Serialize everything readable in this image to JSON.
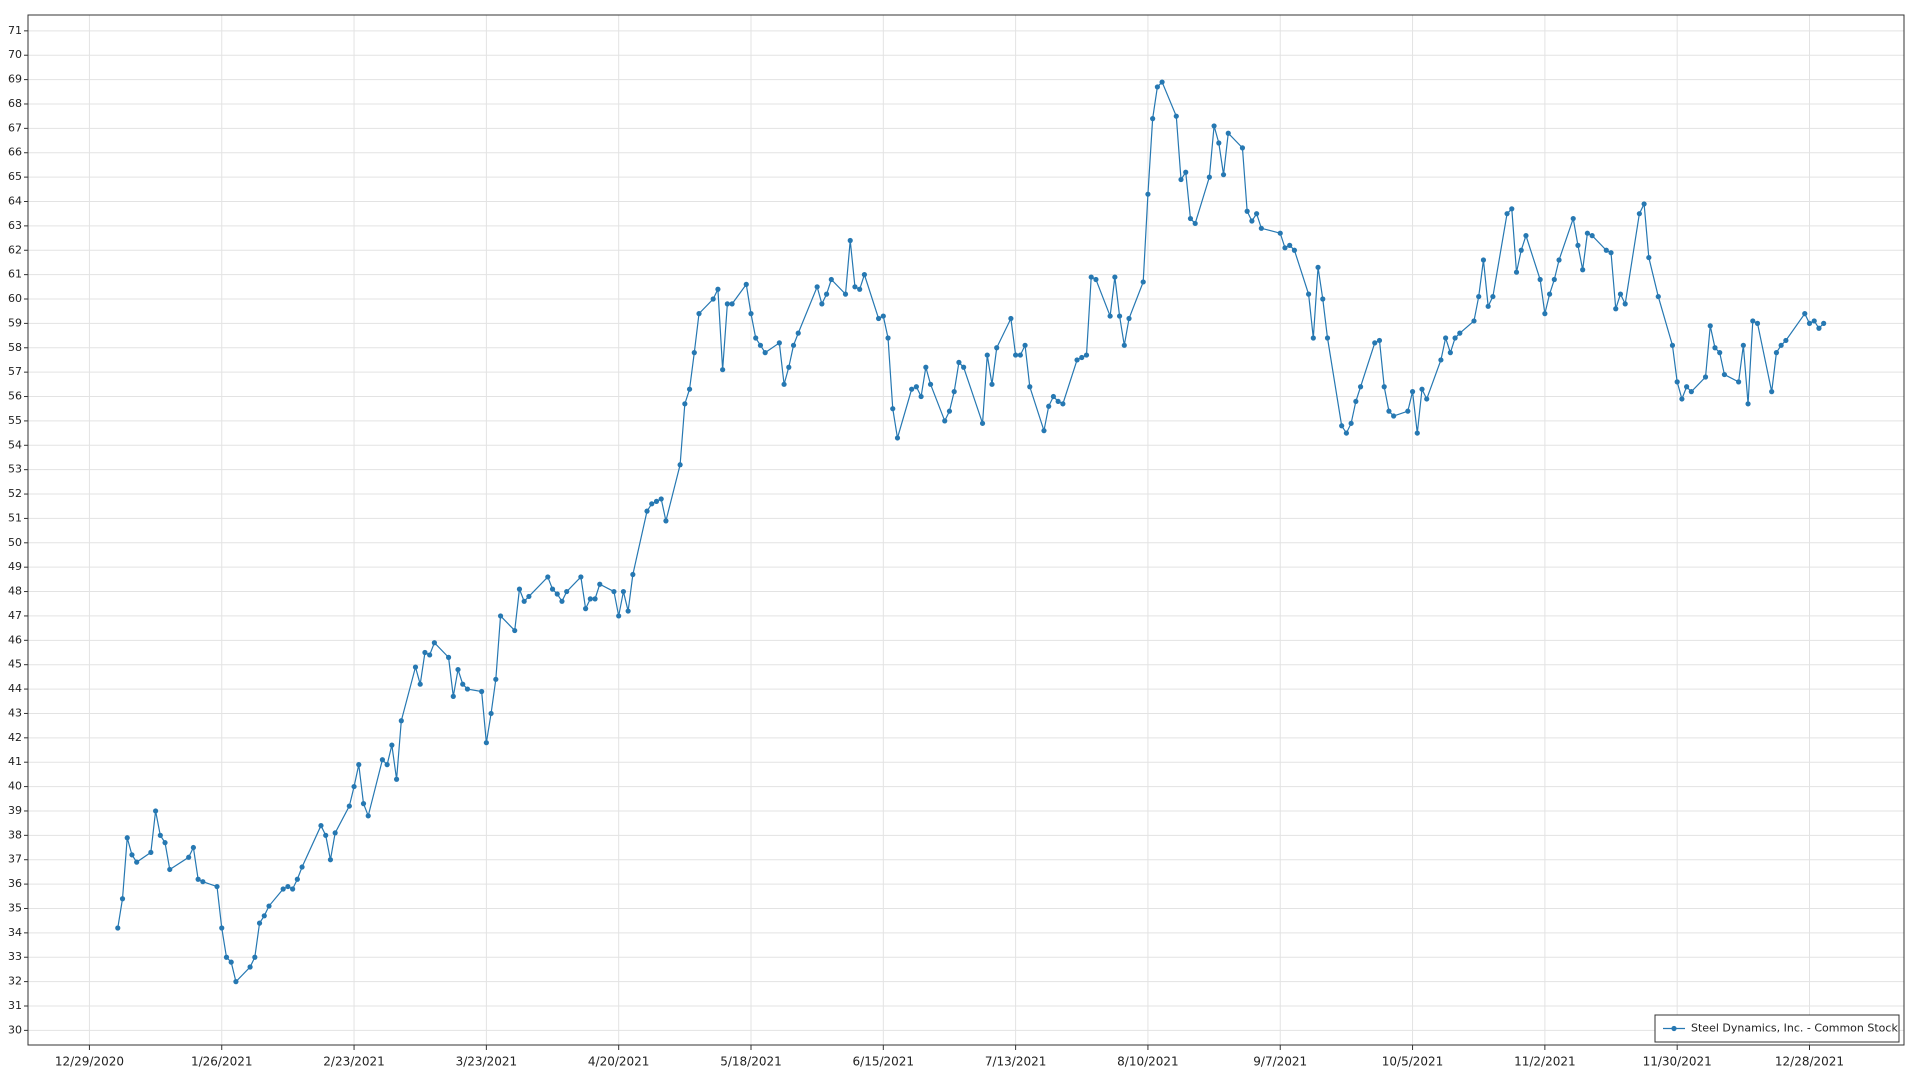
{
  "chart_data": {
    "type": "line",
    "x": [
      "1/4/2021",
      "1/5/2021",
      "1/6/2021",
      "1/7/2021",
      "1/8/2021",
      "1/11/2021",
      "1/12/2021",
      "1/13/2021",
      "1/14/2021",
      "1/15/2021",
      "1/19/2021",
      "1/20/2021",
      "1/21/2021",
      "1/22/2021",
      "1/25/2021",
      "1/26/2021",
      "1/27/2021",
      "1/28/2021",
      "1/29/2021",
      "2/1/2021",
      "2/2/2021",
      "2/3/2021",
      "2/4/2021",
      "2/5/2021",
      "2/8/2021",
      "2/9/2021",
      "2/10/2021",
      "2/11/2021",
      "2/12/2021",
      "2/16/2021",
      "2/17/2021",
      "2/18/2021",
      "2/19/2021",
      "2/22/2021",
      "2/23/2021",
      "2/24/2021",
      "2/25/2021",
      "2/26/2021",
      "3/1/2021",
      "3/2/2021",
      "3/3/2021",
      "3/4/2021",
      "3/5/2021",
      "3/8/2021",
      "3/9/2021",
      "3/10/2021",
      "3/11/2021",
      "3/12/2021",
      "3/15/2021",
      "3/16/2021",
      "3/17/2021",
      "3/18/2021",
      "3/19/2021",
      "3/22/2021",
      "3/23/2021",
      "3/24/2021",
      "3/25/2021",
      "3/26/2021",
      "3/29/2021",
      "3/30/2021",
      "3/31/2021",
      "4/1/2021",
      "4/5/2021",
      "4/6/2021",
      "4/7/2021",
      "4/8/2021",
      "4/9/2021",
      "4/12/2021",
      "4/13/2021",
      "4/14/2021",
      "4/15/2021",
      "4/16/2021",
      "4/19/2021",
      "4/20/2021",
      "4/21/2021",
      "4/22/2021",
      "4/23/2021",
      "4/26/2021",
      "4/27/2021",
      "4/28/2021",
      "4/29/2021",
      "4/30/2021",
      "5/3/2021",
      "5/4/2021",
      "5/5/2021",
      "5/6/2021",
      "5/7/2021",
      "5/10/2021",
      "5/11/2021",
      "5/12/2021",
      "5/13/2021",
      "5/14/2021",
      "5/17/2021",
      "5/18/2021",
      "5/19/2021",
      "5/20/2021",
      "5/21/2021",
      "5/24/2021",
      "5/25/2021",
      "5/26/2021",
      "5/27/2021",
      "5/28/2021",
      "6/1/2021",
      "6/2/2021",
      "6/3/2021",
      "6/4/2021",
      "6/7/2021",
      "6/8/2021",
      "6/9/2021",
      "6/10/2021",
      "6/11/2021",
      "6/14/2021",
      "6/15/2021",
      "6/16/2021",
      "6/17/2021",
      "6/18/2021",
      "6/21/2021",
      "6/22/2021",
      "6/23/2021",
      "6/24/2021",
      "6/25/2021",
      "6/28/2021",
      "6/29/2021",
      "6/30/2021",
      "7/1/2021",
      "7/2/2021",
      "7/6/2021",
      "7/7/2021",
      "7/8/2021",
      "7/9/2021",
      "7/12/2021",
      "7/13/2021",
      "7/14/2021",
      "7/15/2021",
      "7/16/2021",
      "7/19/2021",
      "7/20/2021",
      "7/21/2021",
      "7/22/2021",
      "7/23/2021",
      "7/26/2021",
      "7/27/2021",
      "7/28/2021",
      "7/29/2021",
      "7/30/2021",
      "8/2/2021",
      "8/3/2021",
      "8/4/2021",
      "8/5/2021",
      "8/6/2021",
      "8/9/2021",
      "8/10/2021",
      "8/11/2021",
      "8/12/2021",
      "8/13/2021",
      "8/16/2021",
      "8/17/2021",
      "8/18/2021",
      "8/19/2021",
      "8/20/2021",
      "8/23/2021",
      "8/24/2021",
      "8/25/2021",
      "8/26/2021",
      "8/27/2021",
      "8/30/2021",
      "8/31/2021",
      "9/1/2021",
      "9/2/2021",
      "9/3/2021",
      "9/7/2021",
      "9/8/2021",
      "9/9/2021",
      "9/10/2021",
      "9/13/2021",
      "9/14/2021",
      "9/15/2021",
      "9/16/2021",
      "9/17/2021",
      "9/20/2021",
      "9/21/2021",
      "9/22/2021",
      "9/23/2021",
      "9/24/2021",
      "9/27/2021",
      "9/28/2021",
      "9/29/2021",
      "9/30/2021",
      "10/1/2021",
      "10/4/2021",
      "10/5/2021",
      "10/6/2021",
      "10/7/2021",
      "10/8/2021",
      "10/11/2021",
      "10/12/2021",
      "10/13/2021",
      "10/14/2021",
      "10/15/2021",
      "10/18/2021",
      "10/19/2021",
      "10/20/2021",
      "10/21/2021",
      "10/22/2021",
      "10/25/2021",
      "10/26/2021",
      "10/27/2021",
      "10/28/2021",
      "10/29/2021",
      "11/1/2021",
      "11/2/2021",
      "11/3/2021",
      "11/4/2021",
      "11/5/2021",
      "11/8/2021",
      "11/9/2021",
      "11/10/2021",
      "11/11/2021",
      "11/12/2021",
      "11/15/2021",
      "11/16/2021",
      "11/17/2021",
      "11/18/2021",
      "11/19/2021",
      "11/22/2021",
      "11/23/2021",
      "11/24/2021",
      "11/26/2021",
      "11/29/2021",
      "11/30/2021",
      "12/1/2021",
      "12/2/2021",
      "12/3/2021",
      "12/6/2021",
      "12/7/2021",
      "12/8/2021",
      "12/9/2021",
      "12/10/2021",
      "12/13/2021",
      "12/14/2021",
      "12/15/2021",
      "12/16/2021",
      "12/17/2021",
      "12/20/2021",
      "12/21/2021",
      "12/22/2021",
      "12/23/2021",
      "12/27/2021",
      "12/28/2021",
      "12/29/2021",
      "12/30/2021",
      "12/31/2021"
    ],
    "series": [
      {
        "name": "Steel Dynamics, Inc. - Common Stock",
        "color": "#2678b2",
        "values": [
          34.2,
          35.4,
          37.9,
          37.2,
          36.9,
          37.3,
          39.0,
          38.0,
          37.7,
          36.6,
          37.1,
          37.5,
          36.2,
          36.1,
          35.9,
          34.2,
          33.0,
          32.8,
          32.0,
          32.6,
          33.0,
          34.4,
          34.7,
          35.1,
          35.8,
          35.9,
          35.8,
          36.2,
          36.7,
          38.4,
          38.0,
          37.0,
          38.1,
          39.2,
          40.0,
          40.9,
          39.3,
          38.8,
          41.1,
          40.9,
          41.7,
          40.3,
          42.7,
          44.9,
          44.2,
          45.5,
          45.4,
          45.9,
          45.3,
          43.7,
          44.8,
          44.2,
          44.0,
          43.9,
          41.8,
          43.0,
          44.4,
          47.0,
          46.4,
          48.1,
          47.6,
          47.8,
          48.6,
          48.1,
          47.9,
          47.6,
          48.0,
          48.6,
          47.3,
          47.7,
          47.7,
          48.3,
          48.0,
          47.0,
          48.0,
          47.2,
          48.7,
          51.3,
          51.6,
          51.7,
          51.8,
          50.9,
          53.2,
          55.7,
          56.3,
          57.8,
          59.4,
          60.0,
          60.4,
          57.1,
          59.8,
          59.8,
          60.6,
          59.4,
          58.4,
          58.1,
          57.8,
          58.2,
          56.5,
          57.2,
          58.1,
          58.6,
          60.5,
          59.8,
          60.2,
          60.8,
          60.2,
          62.4,
          60.5,
          60.4,
          61.0,
          59.2,
          59.3,
          58.4,
          55.5,
          54.3,
          56.3,
          56.4,
          56.0,
          57.2,
          56.5,
          55.0,
          55.4,
          56.2,
          57.4,
          57.2,
          54.9,
          57.7,
          56.5,
          58.0,
          59.2,
          57.7,
          57.7,
          58.1,
          56.4,
          54.6,
          55.6,
          56.0,
          55.8,
          55.7,
          57.5,
          57.6,
          57.7,
          60.9,
          60.8,
          59.3,
          60.9,
          59.3,
          58.1,
          59.2,
          60.7,
          64.3,
          67.4,
          68.7,
          68.9,
          67.5,
          64.9,
          65.2,
          63.3,
          63.1,
          65.0,
          67.1,
          66.4,
          65.1,
          66.8,
          66.2,
          63.6,
          63.2,
          63.5,
          62.9,
          62.7,
          62.1,
          62.2,
          62.0,
          60.2,
          58.4,
          61.3,
          60.0,
          58.4,
          54.8,
          54.5,
          54.9,
          55.8,
          56.4,
          58.2,
          58.3,
          56.4,
          55.4,
          55.2,
          55.4,
          56.2,
          54.5,
          56.3,
          55.9,
          57.5,
          58.4,
          57.8,
          58.4,
          58.6,
          59.1,
          60.1,
          61.6,
          59.7,
          60.1,
          63.5,
          63.7,
          61.1,
          62.0,
          62.6,
          60.8,
          59.4,
          60.2,
          60.8,
          61.6,
          63.3,
          62.2,
          61.2,
          62.7,
          62.6,
          62.0,
          61.9,
          59.6,
          60.2,
          59.8,
          63.5,
          63.9,
          61.7,
          60.1,
          58.1,
          56.6,
          55.9,
          56.4,
          56.2,
          56.8,
          58.9,
          58.0,
          57.8,
          56.9,
          56.6,
          58.1,
          55.7,
          59.1,
          59.0,
          56.2,
          57.8,
          58.1,
          58.3,
          59.4,
          59.0,
          59.1,
          58.8,
          59.0
        ]
      }
    ],
    "xlim": [
      "12/16/2020",
      "1/17/2022"
    ],
    "xticks": [
      "12/29/2020",
      "1/26/2021",
      "2/23/2021",
      "3/23/2021",
      "4/20/2021",
      "5/18/2021",
      "6/15/2021",
      "7/13/2021",
      "8/10/2021",
      "9/7/2021",
      "10/5/2021",
      "11/2/2021",
      "11/30/2021",
      "12/28/2021"
    ],
    "ylim": [
      29.4,
      71.65
    ],
    "yticks": [
      30,
      31,
      32,
      33,
      34,
      35,
      36,
      37,
      38,
      39,
      40,
      41,
      42,
      43,
      44,
      45,
      46,
      47,
      48,
      49,
      50,
      51,
      52,
      53,
      54,
      55,
      56,
      57,
      58,
      59,
      60,
      61,
      62,
      63,
      64,
      65,
      66,
      67,
      68,
      69,
      70,
      71
    ],
    "grid": true,
    "legend": "lower right",
    "markers": true
  }
}
